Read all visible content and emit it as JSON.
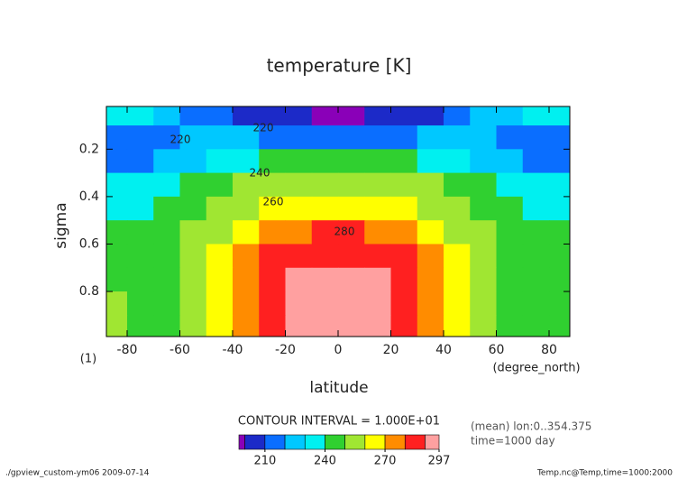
{
  "chart_data": {
    "type": "contour",
    "title": "temperature [K]",
    "x_label": "latitude",
    "y_label": "sigma",
    "x_unit": "(degree_north)",
    "y_unit": "(1)",
    "x": [
      -85,
      -75,
      -65,
      -55,
      -45,
      -35,
      -25,
      -15,
      -5,
      5,
      15,
      25,
      35,
      45,
      55,
      65,
      75,
      85
    ],
    "y": [
      0.05,
      0.15,
      0.25,
      0.35,
      0.45,
      0.55,
      0.65,
      0.75,
      0.85,
      0.95
    ],
    "values": [
      [
        232,
        230,
        225,
        215,
        210,
        205,
        203,
        200,
        198,
        198,
        200,
        203,
        205,
        210,
        220,
        228,
        232,
        230
      ],
      [
        218,
        217,
        218,
        220,
        222,
        222,
        218,
        215,
        212,
        212,
        215,
        218,
        222,
        222,
        220,
        218,
        217,
        218
      ],
      [
        215,
        217,
        222,
        228,
        233,
        237,
        240,
        242,
        243,
        243,
        242,
        240,
        237,
        233,
        228,
        222,
        217,
        215
      ],
      [
        230,
        232,
        235,
        240,
        245,
        250,
        253,
        255,
        256,
        256,
        255,
        253,
        250,
        245,
        240,
        235,
        232,
        230
      ],
      [
        236,
        238,
        242,
        247,
        253,
        258,
        262,
        265,
        266,
        266,
        265,
        262,
        258,
        253,
        247,
        242,
        238,
        236
      ],
      [
        240,
        242,
        245,
        250,
        257,
        265,
        272,
        278,
        280,
        280,
        278,
        272,
        265,
        257,
        250,
        245,
        242,
        240
      ],
      [
        243,
        244,
        246,
        252,
        261,
        270,
        280,
        286,
        288,
        288,
        286,
        280,
        270,
        261,
        252,
        246,
        244,
        243
      ],
      [
        246,
        245,
        247,
        253,
        263,
        273,
        284,
        290,
        292,
        292,
        290,
        284,
        273,
        263,
        253,
        247,
        245,
        246
      ],
      [
        250,
        246,
        247,
        253,
        263,
        274,
        285,
        292,
        294,
        294,
        292,
        285,
        274,
        263,
        253,
        247,
        246,
        248
      ],
      [
        252,
        247,
        248,
        254,
        264,
        275,
        286,
        292,
        295,
        295,
        292,
        286,
        275,
        264,
        254,
        248,
        247,
        248
      ]
    ],
    "xlim": [
      -87.86,
      87.86
    ],
    "ylim": [
      0.02,
      0.99
    ],
    "y_inverted": true,
    "xticks": [
      -80,
      -60,
      -40,
      -20,
      0,
      20,
      40,
      60,
      80
    ],
    "yticks": [
      0.2,
      0.4,
      0.6,
      0.8
    ],
    "levels": [
      200,
      210,
      220,
      230,
      240,
      250,
      260,
      270,
      280,
      290
    ],
    "colors": [
      "#8a00b8",
      "#1c2ac8",
      "#0a6eff",
      "#00c8ff",
      "#00f0f0",
      "#30d030",
      "#a0e632",
      "#ffff00",
      "#ff8c00",
      "#ff2020",
      "#ffa0a0"
    ],
    "contour_labels": [
      220,
      220,
      240,
      260,
      280
    ],
    "contour_interval": "CONTOUR INTERVAL = 1.000E+01",
    "clim": [
      197,
      297
    ],
    "cticks": [
      210,
      240,
      270,
      297
    ],
    "mean_note": "(mean) lon:0..354.375",
    "time_note": "time=1000 day",
    "footer_left": "./gpview_custom-ym06  2009-07-14",
    "footer_right": "Temp.nc@Temp,time=1000:2000"
  }
}
